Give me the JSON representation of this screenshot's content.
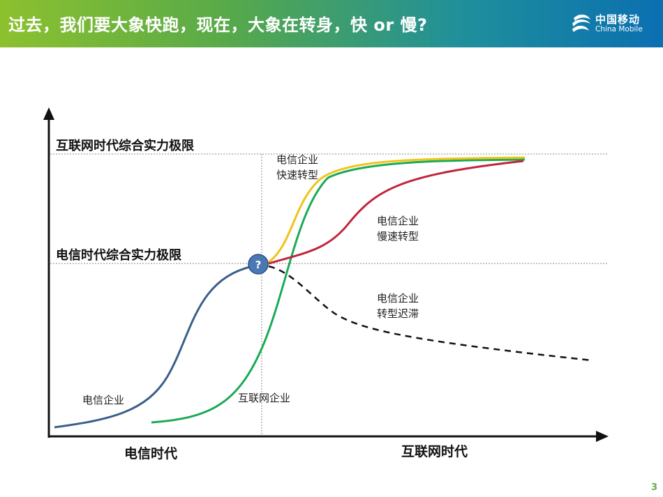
{
  "header": {
    "title": "过去，我们要大象快跑，现在，大象在转身，快 or 慢?",
    "logo_cn": "中国移动",
    "logo_en": "China Mobile"
  },
  "diagram": {
    "limit_internet": "互联网时代综合实力极限",
    "limit_telecom": "电信时代综合实力极限",
    "era_telecom": "电信时代",
    "era_internet": "互联网时代",
    "question_mark": "?",
    "curve_labels": {
      "telecom": "电信企业",
      "internet": "互联网企业",
      "fast_line1": "电信企业",
      "fast_line2": "快速转型",
      "slow_line1": "电信企业",
      "slow_line2": "慢速转型",
      "stagnant_line1": "电信企业",
      "stagnant_line2": "转型迟滞"
    },
    "colors": {
      "telecom_curve": "#3b5f8a",
      "internet_curve": "#1aaa55",
      "fast_curve": "#f0c419",
      "slow_curve": "#c0253d",
      "stagnant_curve": "#111111",
      "node": "#4a78b5"
    }
  },
  "page_number": "3"
}
